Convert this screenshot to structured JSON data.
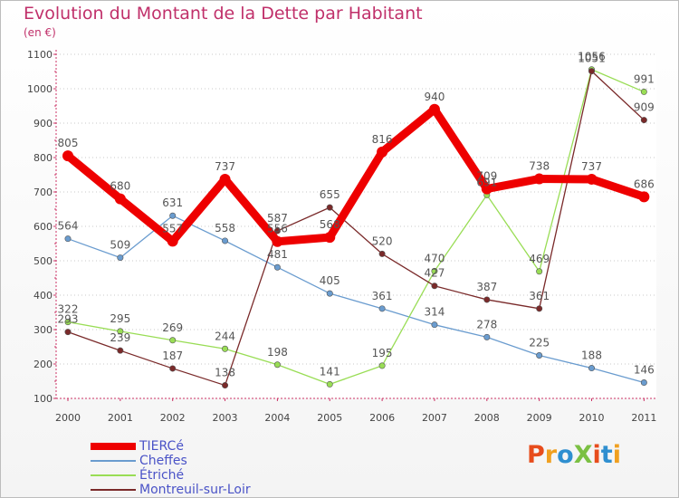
{
  "header": {
    "title": "Evolution du Montant de la Dette par Habitant",
    "unit": "(en €)"
  },
  "logo": {
    "text": "ProXiti",
    "letter_colors": [
      "#e74c1c",
      "#f0a020",
      "#2f8fd0",
      "#7bc043",
      "#e74c1c",
      "#2f8fd0",
      "#f0a020"
    ]
  },
  "chart_data": {
    "type": "line",
    "title": "Evolution du Montant de la Dette par Habitant",
    "ylabel": "(en €)",
    "xlabel": "",
    "x": [
      "2000",
      "2001",
      "2002",
      "2003",
      "2004",
      "2005",
      "2006",
      "2007",
      "2008",
      "2009",
      "2010",
      "2011"
    ],
    "ylim": [
      100,
      1100
    ],
    "yticks": [
      "100",
      "200",
      "300",
      "400",
      "500",
      "600",
      "700",
      "800",
      "900",
      "1000",
      "1100"
    ],
    "grid": "horizontal dotted",
    "legend_position": "bottom-left",
    "series": [
      {
        "name": "TIERCé",
        "color": "#ee0000",
        "width": "thick",
        "values": [
          805,
          680,
          557,
          737,
          556,
          568,
          816,
          940,
          709,
          738,
          737,
          686
        ]
      },
      {
        "name": "Cheffes",
        "color": "#6a9ccf",
        "width": "thin",
        "values": [
          564,
          509,
          631,
          558,
          481,
          405,
          361,
          314,
          278,
          225,
          188,
          146
        ]
      },
      {
        "name": "Étriché",
        "color": "#99dd55",
        "width": "thin",
        "values": [
          322,
          295,
          269,
          244,
          198,
          141,
          195,
          470,
          691,
          469,
          1056,
          991
        ]
      },
      {
        "name": "Montreuil-sur-Loir",
        "color": "#7a2a2a",
        "width": "thin",
        "values": [
          293,
          239,
          187,
          138,
          587,
          655,
          520,
          427,
          387,
          361,
          1051,
          909
        ]
      }
    ]
  }
}
